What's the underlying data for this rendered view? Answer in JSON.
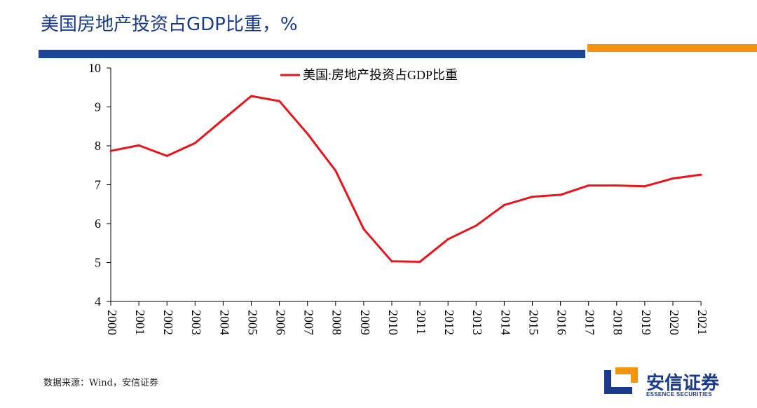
{
  "header": {
    "title": "美国房地产投资占GDP比重，%",
    "accent_blue": "#1b4496",
    "accent_orange": "#f5930f"
  },
  "chart_data": {
    "type": "line",
    "title": "",
    "xlabel": "",
    "ylabel": "",
    "x": [
      "2000",
      "2001",
      "2002",
      "2003",
      "2004",
      "2005",
      "2006",
      "2007",
      "2008",
      "2009",
      "2010",
      "2011",
      "2012",
      "2013",
      "2014",
      "2015",
      "2016",
      "2017",
      "2018",
      "2019",
      "2020",
      "2021"
    ],
    "series": [
      {
        "name": "美国:房地产投资占GDP比重",
        "color": "#e8141b",
        "values": [
          7.87,
          8.01,
          7.74,
          8.07,
          8.68,
          9.28,
          9.15,
          8.31,
          7.36,
          5.86,
          5.03,
          5.02,
          5.6,
          5.95,
          6.48,
          6.69,
          6.74,
          6.98,
          6.98,
          6.96,
          7.16,
          7.26
        ]
      }
    ],
    "ylim": [
      4,
      10
    ],
    "yticks": [
      4,
      5,
      6,
      7,
      8,
      9,
      10
    ],
    "grid": false,
    "legend_position": "top-center"
  },
  "footer": {
    "source": "数据来源：Wind，安信证券"
  },
  "logo": {
    "name_cn": "安信证券",
    "name_en": "ESSENCE SECURITIES",
    "color": "#1b3a8a",
    "mark_accent": "#f5930f"
  }
}
